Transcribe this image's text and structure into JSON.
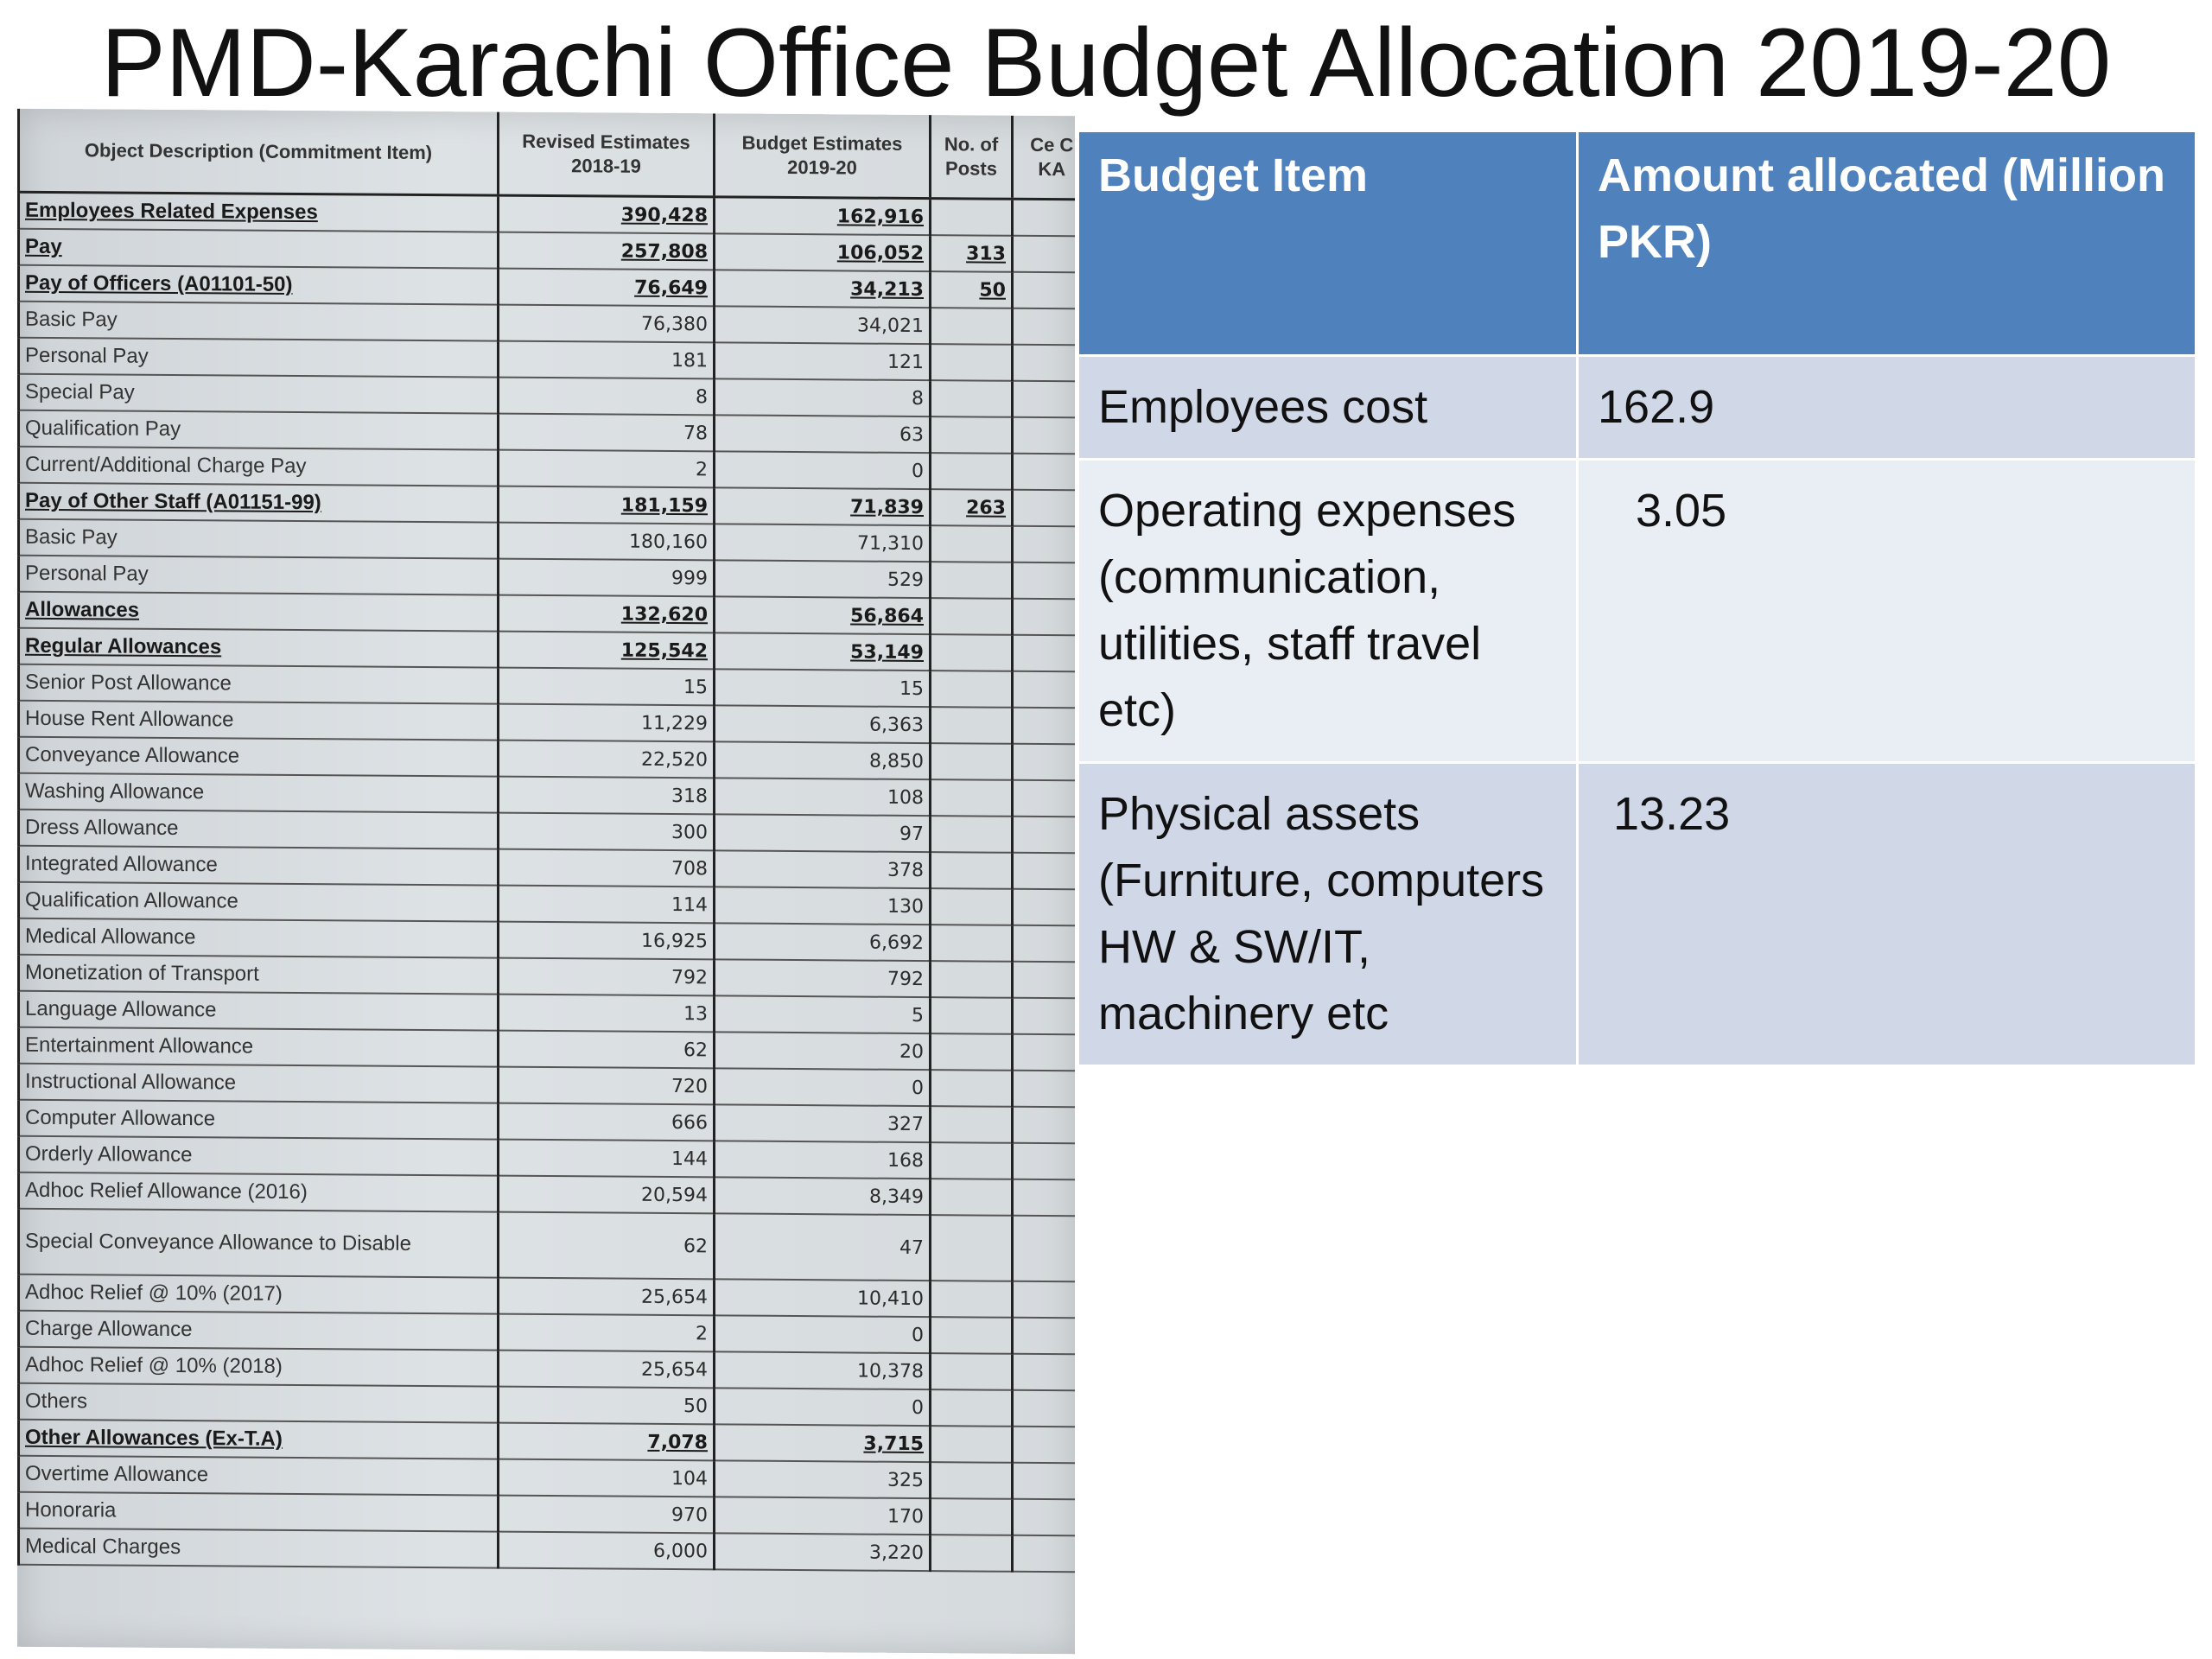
{
  "title": "PMD-Karachi Office Budget Allocation 2019-20",
  "ledger": {
    "headers": [
      "Object Description (Commitment Item)",
      "Revised Estimates 2018-19",
      "Budget Estimates 2019-20",
      "No. of Posts",
      "Ce C KA"
    ],
    "rows": [
      {
        "desc": "Employees Related Expenses",
        "revised": "390,428",
        "budget": "162,916",
        "posts": "",
        "bold": true
      },
      {
        "desc": "Pay",
        "revised": "257,808",
        "budget": "106,052",
        "posts": "313",
        "bold": true
      },
      {
        "desc": "Pay of Officers (A01101-50)",
        "revised": "76,649",
        "budget": "34,213",
        "posts": "50",
        "bold": true
      },
      {
        "desc": "Basic Pay",
        "revised": "76,380",
        "budget": "34,021",
        "posts": ""
      },
      {
        "desc": "Personal Pay",
        "revised": "181",
        "budget": "121",
        "posts": ""
      },
      {
        "desc": "Special Pay",
        "revised": "8",
        "budget": "8",
        "posts": ""
      },
      {
        "desc": "Qualification Pay",
        "revised": "78",
        "budget": "63",
        "posts": ""
      },
      {
        "desc": "Current/Additional Charge Pay",
        "revised": "2",
        "budget": "0",
        "posts": ""
      },
      {
        "desc": "Pay of Other Staff (A01151-99)",
        "revised": "181,159",
        "budget": "71,839",
        "posts": "263",
        "bold": true
      },
      {
        "desc": "Basic Pay",
        "revised": "180,160",
        "budget": "71,310",
        "posts": ""
      },
      {
        "desc": "Personal Pay",
        "revised": "999",
        "budget": "529",
        "posts": ""
      },
      {
        "desc": "Allowances",
        "revised": "132,620",
        "budget": "56,864",
        "posts": "",
        "bold": true
      },
      {
        "desc": "Regular Allowances",
        "revised": "125,542",
        "budget": "53,149",
        "posts": "",
        "bold": true
      },
      {
        "desc": "Senior Post Allowance",
        "revised": "15",
        "budget": "15",
        "posts": ""
      },
      {
        "desc": "House Rent Allowance",
        "revised": "11,229",
        "budget": "6,363",
        "posts": ""
      },
      {
        "desc": "Conveyance Allowance",
        "revised": "22,520",
        "budget": "8,850",
        "posts": ""
      },
      {
        "desc": "Washing Allowance",
        "revised": "318",
        "budget": "108",
        "posts": ""
      },
      {
        "desc": "Dress Allowance",
        "revised": "300",
        "budget": "97",
        "posts": ""
      },
      {
        "desc": "Integrated Allowance",
        "revised": "708",
        "budget": "378",
        "posts": ""
      },
      {
        "desc": "Qualification Allowance",
        "revised": "114",
        "budget": "130",
        "posts": ""
      },
      {
        "desc": "Medical Allowance",
        "revised": "16,925",
        "budget": "6,692",
        "posts": ""
      },
      {
        "desc": "Monetization of Transport",
        "revised": "792",
        "budget": "792",
        "posts": ""
      },
      {
        "desc": "Language Allowance",
        "revised": "13",
        "budget": "5",
        "posts": ""
      },
      {
        "desc": "Entertainment Allowance",
        "revised": "62",
        "budget": "20",
        "posts": ""
      },
      {
        "desc": "Instructional Allowance",
        "revised": "720",
        "budget": "0",
        "posts": ""
      },
      {
        "desc": "Computer Allowance",
        "revised": "666",
        "budget": "327",
        "posts": ""
      },
      {
        "desc": "Orderly Allowance",
        "revised": "144",
        "budget": "168",
        "posts": ""
      },
      {
        "desc": "Adhoc Relief Allowance (2016)",
        "revised": "20,594",
        "budget": "8,349",
        "posts": ""
      },
      {
        "desc": "Special Conveyance Allowance to Disable",
        "revised": "62",
        "budget": "47",
        "posts": "",
        "tall": true
      },
      {
        "desc": "Adhoc Relief @ 10% (2017)",
        "revised": "25,654",
        "budget": "10,410",
        "posts": ""
      },
      {
        "desc": "Charge Allowance",
        "revised": "2",
        "budget": "0",
        "posts": ""
      },
      {
        "desc": "Adhoc Relief @ 10% (2018)",
        "revised": "25,654",
        "budget": "10,378",
        "posts": ""
      },
      {
        "desc": "Others",
        "revised": "50",
        "budget": "0",
        "posts": ""
      },
      {
        "desc": "Other Allowances (Ex-T.A)",
        "revised": "7,078",
        "budget": "3,715",
        "posts": "",
        "bold": true
      },
      {
        "desc": "Overtime Allowance",
        "revised": "104",
        "budget": "325",
        "posts": ""
      },
      {
        "desc": "Honoraria",
        "revised": "970",
        "budget": "170",
        "posts": ""
      },
      {
        "desc": "Medical Charges",
        "revised": "6,000",
        "budget": "3,220",
        "posts": ""
      }
    ]
  },
  "summary": {
    "headers": {
      "item": "Budget Item",
      "amount": "Amount allocated (Million PKR)"
    },
    "rows": [
      {
        "item": "Employees cost",
        "amount": "162.9"
      },
      {
        "item": "Operating expenses (communication, utilities, staff travel etc)",
        "amount": "3.05"
      },
      {
        "item": "Physical assets (Furniture, computers HW & SW/IT, machinery etc",
        "amount": "13.23"
      }
    ]
  }
}
